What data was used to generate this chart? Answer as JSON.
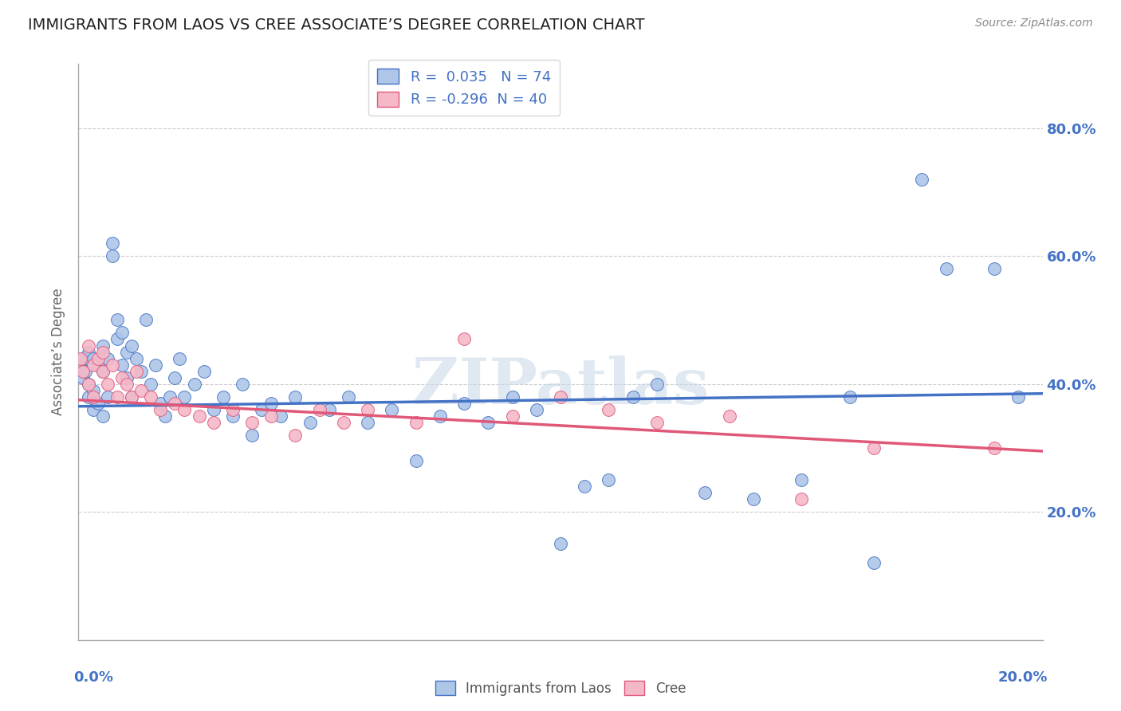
{
  "title": "IMMIGRANTS FROM LAOS VS CREE ASSOCIATE’S DEGREE CORRELATION CHART",
  "source": "Source: ZipAtlas.com",
  "ylabel": "Associate’s Degree",
  "r_laos": 0.035,
  "n_laos": 74,
  "r_cree": -0.296,
  "n_cree": 40,
  "color_laos": "#aec6e8",
  "color_cree": "#f4b8c8",
  "line_color_laos": "#4472c4",
  "line_color_cree": "#e05878",
  "watermark": "ZIPatlas",
  "xlim": [
    0.0,
    0.2
  ],
  "ylim": [
    0.0,
    0.9
  ],
  "yticks": [
    0.2,
    0.4,
    0.6,
    0.8
  ],
  "ytick_labels": [
    "20.0%",
    "40.0%",
    "60.0%",
    "80.0%"
  ],
  "laos_x": [
    0.0005,
    0.001,
    0.001,
    0.0015,
    0.002,
    0.002,
    0.002,
    0.003,
    0.003,
    0.003,
    0.004,
    0.004,
    0.005,
    0.005,
    0.005,
    0.006,
    0.006,
    0.007,
    0.007,
    0.008,
    0.008,
    0.009,
    0.009,
    0.01,
    0.01,
    0.011,
    0.011,
    0.012,
    0.013,
    0.014,
    0.015,
    0.016,
    0.017,
    0.018,
    0.019,
    0.02,
    0.021,
    0.022,
    0.024,
    0.026,
    0.028,
    0.03,
    0.032,
    0.034,
    0.036,
    0.038,
    0.04,
    0.042,
    0.045,
    0.048,
    0.052,
    0.056,
    0.06,
    0.065,
    0.07,
    0.075,
    0.08,
    0.085,
    0.09,
    0.095,
    0.1,
    0.105,
    0.11,
    0.115,
    0.12,
    0.13,
    0.14,
    0.15,
    0.16,
    0.165,
    0.175,
    0.18,
    0.19,
    0.195
  ],
  "laos_y": [
    0.43,
    0.44,
    0.41,
    0.42,
    0.45,
    0.4,
    0.38,
    0.44,
    0.39,
    0.36,
    0.43,
    0.37,
    0.46,
    0.42,
    0.35,
    0.44,
    0.38,
    0.62,
    0.6,
    0.5,
    0.47,
    0.48,
    0.43,
    0.45,
    0.41,
    0.46,
    0.38,
    0.44,
    0.42,
    0.5,
    0.4,
    0.43,
    0.37,
    0.35,
    0.38,
    0.41,
    0.44,
    0.38,
    0.4,
    0.42,
    0.36,
    0.38,
    0.35,
    0.4,
    0.32,
    0.36,
    0.37,
    0.35,
    0.38,
    0.34,
    0.36,
    0.38,
    0.34,
    0.36,
    0.28,
    0.35,
    0.37,
    0.34,
    0.38,
    0.36,
    0.15,
    0.24,
    0.25,
    0.38,
    0.4,
    0.23,
    0.22,
    0.25,
    0.38,
    0.12,
    0.72,
    0.58,
    0.58,
    0.38
  ],
  "cree_x": [
    0.0005,
    0.001,
    0.002,
    0.002,
    0.003,
    0.003,
    0.004,
    0.005,
    0.005,
    0.006,
    0.007,
    0.008,
    0.009,
    0.01,
    0.011,
    0.012,
    0.013,
    0.015,
    0.017,
    0.02,
    0.022,
    0.025,
    0.028,
    0.032,
    0.036,
    0.04,
    0.045,
    0.05,
    0.055,
    0.06,
    0.07,
    0.08,
    0.09,
    0.1,
    0.11,
    0.12,
    0.135,
    0.15,
    0.165,
    0.19
  ],
  "cree_y": [
    0.44,
    0.42,
    0.46,
    0.4,
    0.43,
    0.38,
    0.44,
    0.42,
    0.45,
    0.4,
    0.43,
    0.38,
    0.41,
    0.4,
    0.38,
    0.42,
    0.39,
    0.38,
    0.36,
    0.37,
    0.36,
    0.35,
    0.34,
    0.36,
    0.34,
    0.35,
    0.32,
    0.36,
    0.34,
    0.36,
    0.34,
    0.47,
    0.35,
    0.38,
    0.36,
    0.34,
    0.35,
    0.22,
    0.3,
    0.3
  ],
  "laos_line": [
    0.365,
    0.385
  ],
  "cree_line": [
    0.375,
    0.295
  ]
}
